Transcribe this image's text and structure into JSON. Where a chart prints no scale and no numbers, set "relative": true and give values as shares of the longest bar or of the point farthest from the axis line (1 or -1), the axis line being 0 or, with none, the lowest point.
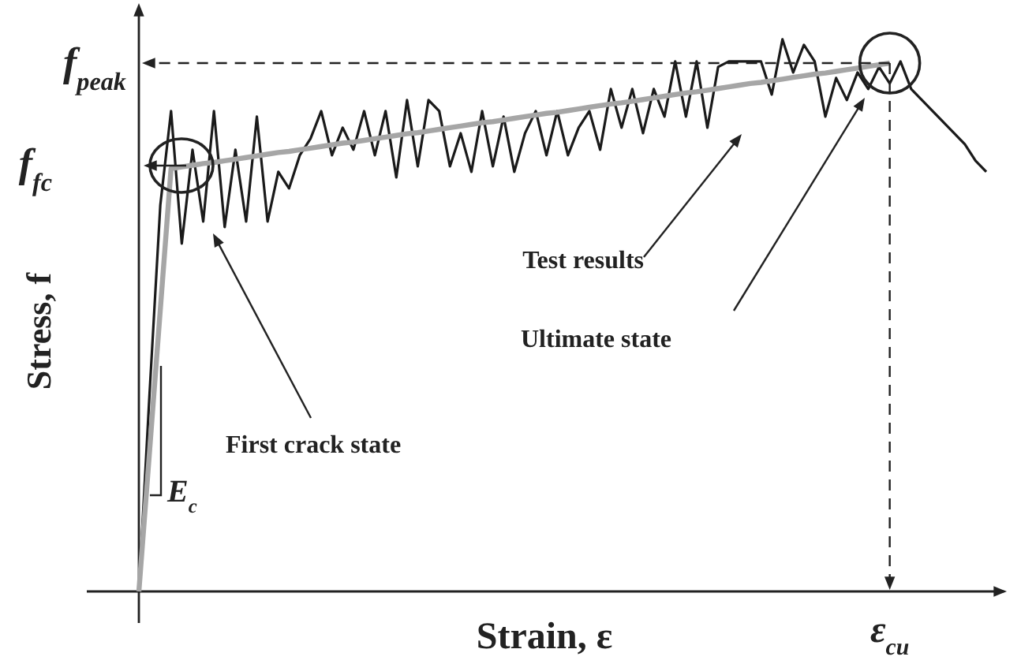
{
  "chart_data": {
    "type": "line",
    "relative": true,
    "xlabel": "Strain, ε",
    "ylabel": "Stress, f",
    "categories": [
      null,
      null,
      null,
      null,
      null,
      null,
      null,
      null,
      null,
      null,
      null,
      null,
      null,
      null,
      null,
      null,
      null,
      null,
      null,
      null,
      null,
      null,
      null,
      null,
      null,
      null,
      null,
      null,
      null,
      null,
      null,
      null,
      null,
      null,
      null,
      null,
      null,
      null,
      null,
      null,
      null,
      null,
      null,
      null,
      null,
      null,
      null,
      null,
      null,
      null,
      null,
      null,
      null,
      null,
      null,
      null,
      null,
      null,
      null,
      null,
      null,
      null,
      null,
      null,
      null,
      null,
      null,
      null,
      null,
      null,
      null,
      null,
      null,
      null,
      null,
      null,
      null,
      null,
      null,
      null
    ],
    "series": [
      {
        "color": "#1a1a1a",
        "values": [
          0,
          0.36,
          0.7,
          0.87,
          0.63,
          0.8,
          0.67,
          0.87,
          0.66,
          0.8,
          0.67,
          0.86,
          0.67,
          0.76,
          0.73,
          0.79,
          0.82,
          0.87,
          0.79,
          0.84,
          0.8,
          0.87,
          0.79,
          0.87,
          0.75,
          0.89,
          0.77,
          0.89,
          0.87,
          0.77,
          0.83,
          0.76,
          0.87,
          0.77,
          0.86,
          0.76,
          0.83,
          0.87,
          0.79,
          0.87,
          0.79,
          0.84,
          0.87,
          0.8,
          0.91,
          0.84,
          0.91,
          0.83,
          0.91,
          0.86,
          0.96,
          0.86,
          0.96,
          0.84,
          0.95,
          0.96,
          0.96,
          0.96,
          0.96,
          0.9,
          1,
          0.94,
          0.99,
          0.96,
          0.86,
          0.93,
          0.89,
          0.94,
          0.91,
          0.95,
          0.92,
          0.96,
          0.91,
          0.89,
          0.87,
          0.85,
          0.83,
          0.81,
          0.78,
          0.76
        ]
      },
      {
        "color": "#a6a6a6",
        "values": [
          0,
          0.255,
          0.511,
          0.766,
          0.769,
          0.772,
          0.775,
          0.777,
          0.78,
          0.783,
          0.786,
          0.789,
          0.792,
          0.795,
          0.797,
          0.8,
          0.803,
          0.806,
          0.809,
          0.812,
          0.814,
          0.817,
          0.82,
          0.823,
          0.826,
          0.829,
          0.831,
          0.834,
          0.837,
          0.84,
          0.843,
          0.846,
          0.849,
          0.851,
          0.854,
          0.857,
          0.86,
          0.863,
          0.866,
          0.868,
          0.871,
          0.874,
          0.877,
          0.88,
          0.883,
          0.885,
          0.888,
          0.891,
          0.894,
          0.897,
          0.9,
          0.903,
          0.905,
          0.908,
          0.911,
          0.914,
          0.917,
          0.92,
          0.922,
          0.925,
          0.928,
          0.931,
          0.934,
          0.937,
          0.939,
          0.942,
          0.945,
          0.948,
          0.951,
          0.954,
          0.957,
          null,
          null,
          null,
          null,
          null,
          null,
          null,
          null,
          null
        ]
      }
    ],
    "ref_lines": [
      {
        "axis": "y",
        "value": 0.957,
        "label": "f$_{peak}$",
        "line_style": "dashed"
      }
    ],
    "annotations": [
      "f$_{fc}$",
      "Test results",
      "Ultimate state",
      "First crack state",
      "E$_{c}$",
      "ε$_{cu}$"
    ]
  }
}
